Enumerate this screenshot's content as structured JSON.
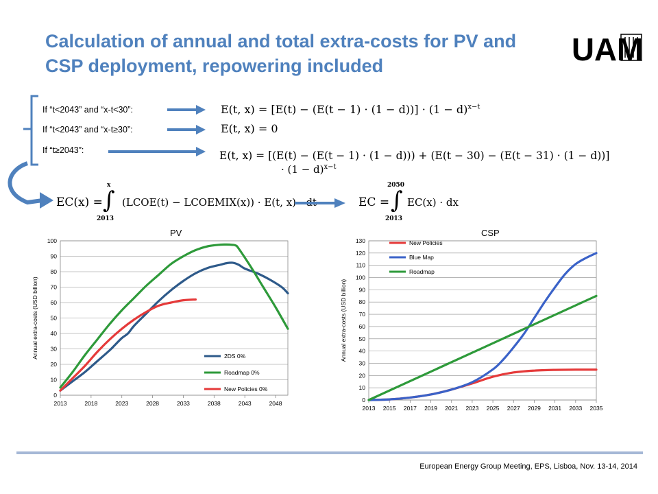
{
  "slide": {
    "title_line1": "Calculation of annual and total extra-costs for PV and",
    "title_line2": "CSP deployment, repowering included",
    "logo_text": "UAM",
    "footer": "European Energy Group Meeting, EPS, Lisboa, Nov. 13-14, 2014",
    "accent_color": "#4f81bd"
  },
  "conditions": [
    {
      "label": "If “t<2043” and “x-t<30”:",
      "equation": "E(t, x) = [E(t) − (E(t − 1) · (1 − d))] · (1 − d)",
      "exponent": "x−t"
    },
    {
      "label": "If “t<2043” and “x-t≥30”:",
      "equation": "E(t, x) = 0",
      "exponent": ""
    },
    {
      "label": "If “t≥2043”:",
      "equation": "E(t, x) = [(E(t) − (E(t − 1) · (1 − d))) + (E(t − 30) − (E(t − 31) · (1 − d))]",
      "equation_line2": "· (1 − d)",
      "exponent": "x−t"
    }
  ],
  "integrals": [
    {
      "lhs": "EC(x) =",
      "integrand": "(LCOE(t) − LCOEMIX(x)) · E(t, x) · dt",
      "upper": "x",
      "lower": "2013"
    },
    {
      "lhs": "EC =",
      "integrand": "EC(x) · dx",
      "upper": "2050",
      "lower": "2013"
    }
  ],
  "chart_data": [
    {
      "type": "line",
      "title": "PV",
      "ylabel": "Annual extra-costs (USD billion)",
      "xlabel": "",
      "xlim": [
        2013,
        2050
      ],
      "ylim": [
        0,
        100
      ],
      "x_ticks": [
        2013,
        2018,
        2023,
        2028,
        2033,
        2038,
        2043,
        2048
      ],
      "y_ticks": [
        0,
        10,
        20,
        30,
        40,
        50,
        60,
        70,
        80,
        90,
        100
      ],
      "grid": true,
      "legend_position": "bottom-right",
      "series": [
        {
          "name": "2DS 0%",
          "color": "#2e5a8a",
          "x": [
            2013,
            2015,
            2017,
            2019,
            2021,
            2022,
            2023,
            2024,
            2025,
            2027,
            2029,
            2031,
            2033,
            2035,
            2037,
            2039,
            2040,
            2041,
            2042,
            2043,
            2045,
            2047,
            2049,
            2050
          ],
          "y": [
            3,
            9,
            15,
            22,
            29,
            33,
            37,
            40,
            45,
            53,
            61,
            68,
            74,
            79,
            82.5,
            84.5,
            85.5,
            85.8,
            84.5,
            82,
            79,
            75,
            70,
            66
          ]
        },
        {
          "name": "Roadmap 0%",
          "color": "#2e9a3a",
          "x": [
            2013,
            2015,
            2017,
            2019,
            2021,
            2023,
            2025,
            2027,
            2029,
            2031,
            2033,
            2035,
            2037,
            2039,
            2040,
            2041,
            2041.5,
            2042,
            2044,
            2046,
            2048,
            2050
          ],
          "y": [
            5,
            15,
            26,
            36,
            46,
            55,
            63,
            71,
            78,
            85,
            90,
            94,
            96.5,
            97.5,
            97.6,
            97.4,
            97,
            95,
            83,
            70,
            57,
            43
          ]
        },
        {
          "name": "New Policies 0%",
          "color": "#e53a3a",
          "x": [
            2013,
            2015,
            2017,
            2019,
            2021,
            2023,
            2025,
            2027,
            2029,
            2031,
            2033,
            2035
          ],
          "y": [
            3,
            11,
            19,
            28,
            36,
            43,
            49,
            54,
            58,
            60,
            61.5,
            62
          ]
        }
      ]
    },
    {
      "type": "line",
      "title": "CSP",
      "ylabel": "Annual extra-costs (USD billion)",
      "xlabel": "",
      "xlim": [
        2013,
        2035
      ],
      "ylim": [
        0,
        130
      ],
      "x_ticks": [
        2013,
        2015,
        2017,
        2019,
        2021,
        2023,
        2025,
        2027,
        2029,
        2031,
        2033,
        2035
      ],
      "y_ticks": [
        0,
        10,
        20,
        30,
        40,
        50,
        60,
        70,
        80,
        90,
        100,
        110,
        120,
        130
      ],
      "grid": true,
      "legend_position": "top-left",
      "series": [
        {
          "name": "New Policies",
          "color": "#e53a3a",
          "x": [
            2013,
            2015,
            2017,
            2019,
            2021,
            2023,
            2025,
            2027,
            2029,
            2031,
            2033,
            2035
          ],
          "y": [
            0,
            0.5,
            2,
            4.5,
            8.5,
            13.5,
            19,
            22.5,
            24,
            24.6,
            24.8,
            24.8
          ]
        },
        {
          "name": "Blue Map",
          "color": "#3a62c8",
          "x": [
            2013,
            2015,
            2017,
            2019,
            2021,
            2023,
            2025,
            2026,
            2027,
            2028,
            2029,
            2030,
            2031,
            2032,
            2033,
            2034,
            2035
          ],
          "y": [
            0,
            0.5,
            2,
            4.5,
            8.5,
            14.5,
            25,
            33,
            43,
            54,
            67,
            80,
            92,
            103,
            111,
            116,
            120
          ]
        },
        {
          "name": "Roadmap",
          "color": "#2e9a3a",
          "x": [
            2013,
            2035
          ],
          "y": [
            0,
            85
          ]
        }
      ]
    }
  ]
}
